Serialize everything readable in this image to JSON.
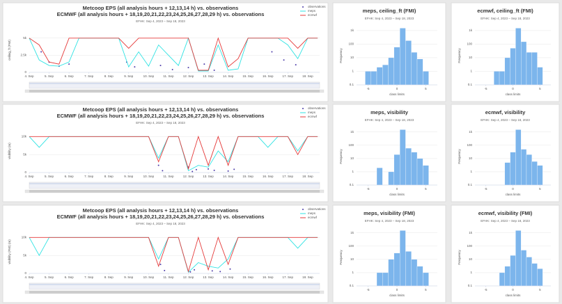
{
  "chart_data": [
    {
      "type": "timeseries",
      "title": "Metcoop EPS (all analysis hours + 12,13,14 h) vs. observations",
      "title_2": "ECMWF (all analysis hours + 18,19,20,21,22,23,24,25,26,27,28,29 h) vs. observations",
      "subtitle": "EFHK: Sep 4, 2023 – Sep 18, 2023",
      "y_label": "ceiling_ft (FMI)",
      "legend": "top-right",
      "x": [
        4,
        4.5,
        5,
        5.5,
        6,
        6.5,
        7,
        7.5,
        8,
        8.5,
        9,
        9.5,
        10,
        10.5,
        11,
        11.5,
        12,
        12.5,
        13,
        13.5,
        14,
        14.5,
        15,
        15.5,
        16,
        16.5,
        17,
        17.5,
        18,
        18.5
      ],
      "xlim": [
        4,
        18.6
      ],
      "xticks": [
        {
          "value": 4,
          "label": "4. Sep"
        },
        {
          "value": 5,
          "label": "5. Sep"
        },
        {
          "value": 6,
          "label": "6. Sep"
        },
        {
          "value": 7,
          "label": "7. Sep"
        },
        {
          "value": 8,
          "label": "8. Sep"
        },
        {
          "value": 9,
          "label": "9. Sep"
        },
        {
          "value": 10,
          "label": "10. Sep"
        },
        {
          "value": 11,
          "label": "11. Sep"
        },
        {
          "value": 12,
          "label": "12. Sep"
        },
        {
          "value": 13,
          "label": "13. Sep"
        },
        {
          "value": 14,
          "label": "14. Sep"
        },
        {
          "value": 15,
          "label": "15. Sep"
        },
        {
          "value": 16,
          "label": "16. Sep"
        },
        {
          "value": 17,
          "label": "17. Sep"
        },
        {
          "value": 18,
          "label": "18. Sep"
        }
      ],
      "ylim": [
        0,
        6500
      ],
      "yticks": [
        0,
        {
          "value": 2500,
          "label": "2.5k"
        },
        {
          "value": 5000,
          "label": "5k"
        }
      ],
      "series": [
        {
          "name": "observations",
          "color": "#4b3aa8",
          "kind": "scatter",
          "x": [
            4.6,
            5,
            5.5,
            6,
            8.9,
            9.3,
            10.6,
            11.2,
            12,
            12.8,
            13.3,
            16.2,
            16.8,
            17.4
          ],
          "values": [
            3000,
            1500,
            900,
            1200,
            1500,
            800,
            1000,
            400,
            700,
            1200,
            300,
            3000,
            1800,
            1100
          ]
        },
        {
          "name": "meps",
          "color": "#2fe3e3",
          "kind": "line",
          "values": [
            5000,
            1800,
            1000,
            900,
            1500,
            5000,
            5000,
            5000,
            5000,
            5000,
            800,
            3000,
            900,
            4000,
            2500,
            1000,
            5000,
            200,
            200,
            4000,
            300,
            500,
            5000,
            5000,
            5000,
            5000,
            4000,
            2000,
            5000,
            5000
          ]
        },
        {
          "name": "ecmwf",
          "color": "#e53a3a",
          "kind": "line",
          "values": [
            5000,
            4000,
            1500,
            1200,
            5000,
            5000,
            5000,
            5000,
            5000,
            5000,
            3500,
            5000,
            5000,
            5000,
            5000,
            5000,
            5000,
            300,
            300,
            5000,
            800,
            2000,
            5000,
            5000,
            5000,
            5000,
            5000,
            3500,
            5000,
            5000
          ]
        }
      ]
    },
    {
      "type": "histogram",
      "title": "meps, ceiling_ft (FMI)",
      "subtitle": "EFHK: Sep 4, 2023 – Sep 18, 2023",
      "y_label": "Frequency",
      "x_label": "class limits",
      "log": true,
      "color": "#7cb5ec",
      "bins": [
        -5.5,
        -4.5,
        -3.5,
        -2.5,
        -1.5,
        -0.5,
        0.5,
        1.5,
        2.5,
        3.5,
        4.5,
        5.5
      ],
      "values": [
        1,
        1,
        2,
        3,
        10,
        60,
        1500,
        180,
        25,
        8,
        1
      ],
      "xlim": [
        -7,
        7
      ],
      "xticks": [
        -5,
        0,
        5
      ],
      "ylim": [
        0.1,
        2000
      ],
      "yticks": [
        0.1,
        1,
        10,
        100,
        {
          "value": 1000,
          "label": "1k"
        }
      ]
    },
    {
      "type": "histogram",
      "title": "ecmwf, ceiling_ft (FMI)",
      "subtitle": "EFHK: Sep 4, 2023 – Sep 18, 2023",
      "y_label": "Frequency",
      "x_label": "class limits",
      "log": true,
      "color": "#7cb5ec",
      "bins": [
        -5.5,
        -4.5,
        -3.5,
        -2.5,
        -1.5,
        -0.5,
        0.5,
        1.5,
        2.5,
        3.5,
        4.5,
        5.5
      ],
      "values": [
        0,
        0,
        1,
        1,
        10,
        50,
        1500,
        150,
        25,
        25,
        2
      ],
      "xlim": [
        -7,
        7
      ],
      "xticks": [
        -5,
        0,
        5
      ],
      "ylim": [
        0.1,
        2000
      ],
      "yticks": [
        0.1,
        1,
        10,
        100,
        {
          "value": 1000,
          "label": "1k"
        }
      ]
    },
    {
      "type": "timeseries",
      "title": "Metcoop EPS (all analysis hours + 12,13,14 h) vs. observations",
      "title_2": "ECMWF (all analysis hours + 18,19,20,21,22,23,24,25,26,27,28,29 h) vs. observations",
      "subtitle": "EFHK: Sep 4, 2023 – Sep 18, 2023",
      "y_label": "visibility (m)",
      "legend": "top-right",
      "x": [
        4,
        4.5,
        5,
        5.5,
        6,
        6.5,
        7,
        7.5,
        8,
        8.5,
        9,
        9.5,
        10,
        10.5,
        11,
        11.5,
        12,
        12.5,
        13,
        13.5,
        14,
        14.5,
        15,
        15.5,
        16,
        16.5,
        17,
        17.5,
        18,
        18.5
      ],
      "xlim": [
        4,
        18.6
      ],
      "xticks": [
        {
          "value": 4,
          "label": "4. Sep"
        },
        {
          "value": 5,
          "label": "5. Sep"
        },
        {
          "value": 6,
          "label": "6. Sep"
        },
        {
          "value": 7,
          "label": "7. Sep"
        },
        {
          "value": 8,
          "label": "8. Sep"
        },
        {
          "value": 9,
          "label": "9. Sep"
        },
        {
          "value": 10,
          "label": "10. Sep"
        },
        {
          "value": 11,
          "label": "11. Sep"
        },
        {
          "value": 12,
          "label": "12. Sep"
        },
        {
          "value": 13,
          "label": "13. Sep"
        },
        {
          "value": 14,
          "label": "14. Sep"
        },
        {
          "value": 15,
          "label": "15. Sep"
        },
        {
          "value": 16,
          "label": "16. Sep"
        },
        {
          "value": 17,
          "label": "17. Sep"
        },
        {
          "value": 18,
          "label": "18. Sep"
        }
      ],
      "ylim": [
        0,
        12000
      ],
      "yticks": [
        0,
        {
          "value": 5000,
          "label": "5k"
        },
        {
          "value": 10000,
          "label": "10k"
        }
      ],
      "series": [
        {
          "name": "observations",
          "color": "#4b3aa8",
          "kind": "scatter",
          "x": [
            10.5,
            10.7,
            12,
            12.2,
            12.4,
            13,
            13.3,
            14,
            14.3
          ],
          "values": [
            2000,
            500,
            1500,
            300,
            800,
            1000,
            600,
            400,
            900
          ]
        },
        {
          "name": "meps",
          "color": "#2fe3e3",
          "kind": "line",
          "values": [
            10000,
            7000,
            10000,
            10000,
            10000,
            10000,
            10000,
            10000,
            10000,
            10000,
            10000,
            10000,
            10000,
            4000,
            10000,
            10000,
            500,
            2000,
            1500,
            6000,
            3000,
            10000,
            10000,
            10000,
            7000,
            10000,
            10000,
            6000,
            10000,
            10000
          ]
        },
        {
          "name": "ecmwf",
          "color": "#e53a3a",
          "kind": "line",
          "values": [
            10000,
            10000,
            10000,
            10000,
            10000,
            10000,
            10000,
            10000,
            10000,
            10000,
            10000,
            10000,
            10000,
            3000,
            10000,
            10000,
            1000,
            10000,
            2000,
            10000,
            2000,
            10000,
            10000,
            10000,
            10000,
            10000,
            10000,
            5000,
            10000,
            10000
          ]
        }
      ]
    },
    {
      "type": "histogram",
      "title": "meps, visibility",
      "subtitle": "EFHK: Sep 4, 2023 – Sep 18, 2023",
      "y_label": "Frequency",
      "x_label": "class limits",
      "log": true,
      "color": "#7cb5ec",
      "bins": [
        -5.5,
        -4.5,
        -3.5,
        -2.5,
        -1.5,
        -0.5,
        0.5,
        1.5,
        2.5,
        3.5,
        4.5,
        5.5
      ],
      "values": [
        0,
        0,
        2,
        0,
        1,
        20,
        1500,
        60,
        30,
        10,
        3
      ],
      "xlim": [
        -7,
        7
      ],
      "xticks": [
        -5,
        0,
        5
      ],
      "ylim": [
        0.1,
        2000
      ],
      "yticks": [
        0.1,
        1,
        10,
        100,
        {
          "value": 1000,
          "label": "1k"
        }
      ]
    },
    {
      "type": "histogram",
      "title": "ecmwf, visibility",
      "subtitle": "EFHK: Sep 4, 2023 – Sep 18, 2023",
      "y_label": "Frequency",
      "x_label": "class limits",
      "log": true,
      "color": "#7cb5ec",
      "bins": [
        -5.5,
        -4.5,
        -3.5,
        -2.5,
        -1.5,
        -0.5,
        0.5,
        1.5,
        2.5,
        3.5,
        4.5,
        5.5
      ],
      "values": [
        0,
        0,
        0,
        0,
        5,
        30,
        1500,
        50,
        20,
        6,
        3
      ],
      "xlim": [
        -7,
        7
      ],
      "xticks": [
        -5,
        0,
        5
      ],
      "ylim": [
        0.1,
        2000
      ],
      "yticks": [
        0.1,
        1,
        10,
        100,
        {
          "value": 1000,
          "label": "1k"
        }
      ]
    },
    {
      "type": "timeseries",
      "title": "Metcoop EPS (all analysis hours + 12,13,14 h) vs. observations",
      "title_2": "ECMWF (all analysis hours + 18,19,20,21,22,23,24,25,26,27,28,29 h) vs. observations",
      "subtitle": "EFHK: Sep 4, 2023 – Sep 18, 2023",
      "y_label": "visibility (FMI) (m)",
      "legend": "top-right",
      "x": [
        4,
        4.5,
        5,
        5.5,
        6,
        6.5,
        7,
        7.5,
        8,
        8.5,
        9,
        9.5,
        10,
        10.5,
        11,
        11.5,
        12,
        12.5,
        13,
        13.5,
        14,
        14.5,
        15,
        15.5,
        16,
        16.5,
        17,
        17.5,
        18,
        18.5
      ],
      "xlim": [
        4,
        18.6
      ],
      "xticks": [
        {
          "value": 4,
          "label": "4. Sep"
        },
        {
          "value": 5,
          "label": "5. Sep"
        },
        {
          "value": 6,
          "label": "6. Sep"
        },
        {
          "value": 7,
          "label": "7. Sep"
        },
        {
          "value": 8,
          "label": "8. Sep"
        },
        {
          "value": 9,
          "label": "9. Sep"
        },
        {
          "value": 10,
          "label": "10. Sep"
        },
        {
          "value": 11,
          "label": "11. Sep"
        },
        {
          "value": 12,
          "label": "12. Sep"
        },
        {
          "value": 13,
          "label": "13. Sep"
        },
        {
          "value": 14,
          "label": "14. Sep"
        },
        {
          "value": 15,
          "label": "15. Sep"
        },
        {
          "value": 16,
          "label": "16. Sep"
        },
        {
          "value": 17,
          "label": "17. Sep"
        },
        {
          "value": 18,
          "label": "18. Sep"
        }
      ],
      "ylim": [
        0,
        12000
      ],
      "yticks": [
        0,
        {
          "value": 5000,
          "label": "5k"
        },
        {
          "value": 10000,
          "label": "10k"
        }
      ],
      "series": [
        {
          "name": "observations",
          "color": "#4b3aa8",
          "kind": "scatter",
          "x": [
            10.6,
            10.8,
            12.1,
            12.3,
            13.2,
            13.6,
            14.1
          ],
          "values": [
            2500,
            800,
            400,
            1000,
            700,
            500,
            1200
          ]
        },
        {
          "name": "meps",
          "color": "#2fe3e3",
          "kind": "line",
          "values": [
            10000,
            5000,
            10000,
            10000,
            10000,
            10000,
            10000,
            10000,
            10000,
            10000,
            10000,
            10000,
            10000,
            4000,
            10000,
            10000,
            300,
            3000,
            2000,
            1500,
            4000,
            10000,
            10000,
            10000,
            10000,
            10000,
            10000,
            7000,
            10000,
            10000
          ]
        },
        {
          "name": "ecmwf",
          "color": "#e53a3a",
          "kind": "line",
          "values": [
            10000,
            10000,
            10000,
            10000,
            10000,
            10000,
            10000,
            10000,
            10000,
            10000,
            10000,
            10000,
            10000,
            2000,
            10000,
            10000,
            500,
            10000,
            1000,
            10000,
            2500,
            10000,
            10000,
            10000,
            10000,
            10000,
            10000,
            10000,
            10000,
            10000
          ]
        }
      ]
    },
    {
      "type": "histogram",
      "title": "meps, visibility (FMI)",
      "subtitle": "EFHK: Sep 4, 2023 – Sep 18, 2023",
      "y_label": "Frequency",
      "x_label": "class limits",
      "log": true,
      "color": "#7cb5ec",
      "bins": [
        -5.5,
        -4.5,
        -3.5,
        -2.5,
        -1.5,
        -0.5,
        0.5,
        1.5,
        2.5,
        3.5,
        4.5,
        5.5
      ],
      "values": [
        0,
        0,
        1,
        1,
        10,
        30,
        1500,
        40,
        10,
        3,
        1
      ],
      "xlim": [
        -7,
        7
      ],
      "xticks": [
        -5,
        0,
        5
      ],
      "ylim": [
        0.1,
        2000
      ],
      "yticks": [
        0.1,
        1,
        10,
        100,
        {
          "value": 1000,
          "label": "1k"
        }
      ]
    },
    {
      "type": "histogram",
      "title": "ecmwf, visibility (FMI)",
      "subtitle": "EFHK: Sep 4, 2023 – Sep 18, 2023",
      "y_label": "Frequency",
      "x_label": "class limits",
      "log": true,
      "color": "#7cb5ec",
      "bins": [
        -5.5,
        -4.5,
        -3.5,
        -2.5,
        -1.5,
        -0.5,
        0.5,
        1.5,
        2.5,
        3.5,
        4.5,
        5.5
      ],
      "values": [
        0,
        0,
        0,
        1,
        3,
        20,
        1500,
        50,
        15,
        5,
        2
      ],
      "xlim": [
        -7,
        7
      ],
      "xticks": [
        -5,
        0,
        5
      ],
      "ylim": [
        0.1,
        2000
      ],
      "yticks": [
        0.1,
        1,
        10,
        100,
        {
          "value": 1000,
          "label": "1k"
        }
      ]
    }
  ]
}
